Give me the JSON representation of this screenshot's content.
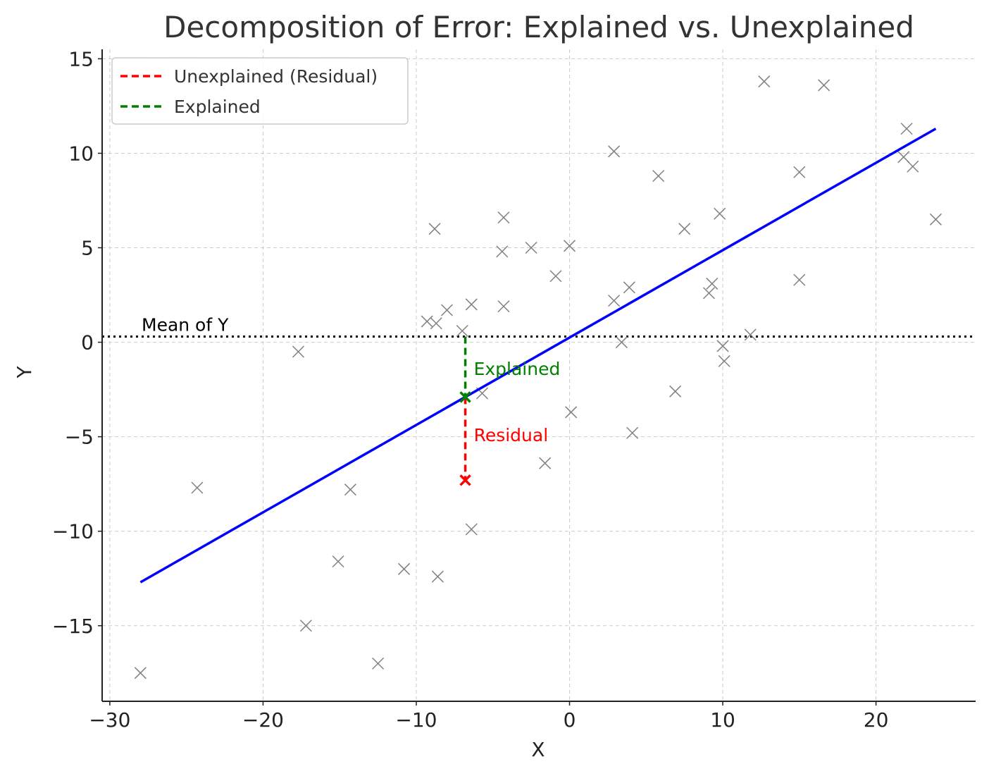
{
  "chart_data": {
    "type": "scatter",
    "title": "Decomposition of Error: Explained vs. Unexplained",
    "xlabel": "X",
    "ylabel": "Y",
    "xlim": [
      -30.5,
      26.5
    ],
    "ylim": [
      -19,
      15.5
    ],
    "xticks": [
      -30,
      -20,
      -10,
      0,
      10,
      20
    ],
    "yticks": [
      -15,
      -10,
      -5,
      0,
      5,
      10,
      15
    ],
    "grid": true,
    "legend_placement": "top-left",
    "legend": [
      {
        "label": "Unexplained (Residual)",
        "color": "#ff0000",
        "style": "dashed"
      },
      {
        "label": "Explained",
        "color": "#008000",
        "style": "dashed"
      }
    ],
    "points": [
      {
        "x": -28.0,
        "y": -17.5
      },
      {
        "x": -24.3,
        "y": -7.7
      },
      {
        "x": -17.7,
        "y": -0.5
      },
      {
        "x": -17.2,
        "y": -15.0
      },
      {
        "x": -15.1,
        "y": -11.6
      },
      {
        "x": -14.3,
        "y": -7.8
      },
      {
        "x": -12.5,
        "y": -17.0
      },
      {
        "x": -10.8,
        "y": -12.0
      },
      {
        "x": -9.3,
        "y": 1.1
      },
      {
        "x": -8.8,
        "y": 6.0
      },
      {
        "x": -8.7,
        "y": 1.0
      },
      {
        "x": -8.6,
        "y": -12.4
      },
      {
        "x": -8.0,
        "y": 1.7
      },
      {
        "x": -7.0,
        "y": 0.6
      },
      {
        "x": -6.4,
        "y": 2.0
      },
      {
        "x": -6.4,
        "y": -9.9
      },
      {
        "x": -5.7,
        "y": -2.7
      },
      {
        "x": -4.4,
        "y": 4.8
      },
      {
        "x": -4.3,
        "y": 6.6
      },
      {
        "x": -4.3,
        "y": 1.9
      },
      {
        "x": -2.5,
        "y": 5.0
      },
      {
        "x": -1.6,
        "y": -6.4
      },
      {
        "x": -0.9,
        "y": 3.5
      },
      {
        "x": 0.0,
        "y": 5.1
      },
      {
        "x": 0.1,
        "y": -3.7
      },
      {
        "x": 2.9,
        "y": 10.1
      },
      {
        "x": 2.9,
        "y": 2.2
      },
      {
        "x": 3.4,
        "y": 0.0
      },
      {
        "x": 3.9,
        "y": 2.9
      },
      {
        "x": 4.1,
        "y": -4.8
      },
      {
        "x": 5.8,
        "y": 8.8
      },
      {
        "x": 6.9,
        "y": -2.6
      },
      {
        "x": 7.5,
        "y": 6.0
      },
      {
        "x": 9.1,
        "y": 2.6
      },
      {
        "x": 9.3,
        "y": 3.1
      },
      {
        "x": 9.8,
        "y": 6.8
      },
      {
        "x": 10.0,
        "y": -0.2
      },
      {
        "x": 10.1,
        "y": -1.0
      },
      {
        "x": 11.8,
        "y": 0.4
      },
      {
        "x": 12.7,
        "y": 13.8
      },
      {
        "x": 15.0,
        "y": 9.0
      },
      {
        "x": 15.0,
        "y": 3.3
      },
      {
        "x": 16.6,
        "y": 13.6
      },
      {
        "x": 21.8,
        "y": 9.8
      },
      {
        "x": 22.0,
        "y": 11.3
      },
      {
        "x": 22.4,
        "y": 9.3
      },
      {
        "x": 23.9,
        "y": 6.5
      }
    ],
    "regression_line": {
      "x": [
        -28.0,
        23.9
      ],
      "y": [
        -12.7,
        11.3
      ],
      "color": "#0000ff"
    },
    "mean_line": {
      "y": 0.3,
      "label": "Mean of Y",
      "color": "#000000"
    },
    "highlight": {
      "x": -6.8,
      "y_actual": -7.3,
      "y_predicted": -2.9,
      "explained_label": "Explained",
      "residual_label": "Residual",
      "explained_color": "#008000",
      "residual_color": "#ff0000"
    },
    "colors": {
      "points": "#808080",
      "grid": "#cccccc",
      "axes": "#222222"
    }
  }
}
